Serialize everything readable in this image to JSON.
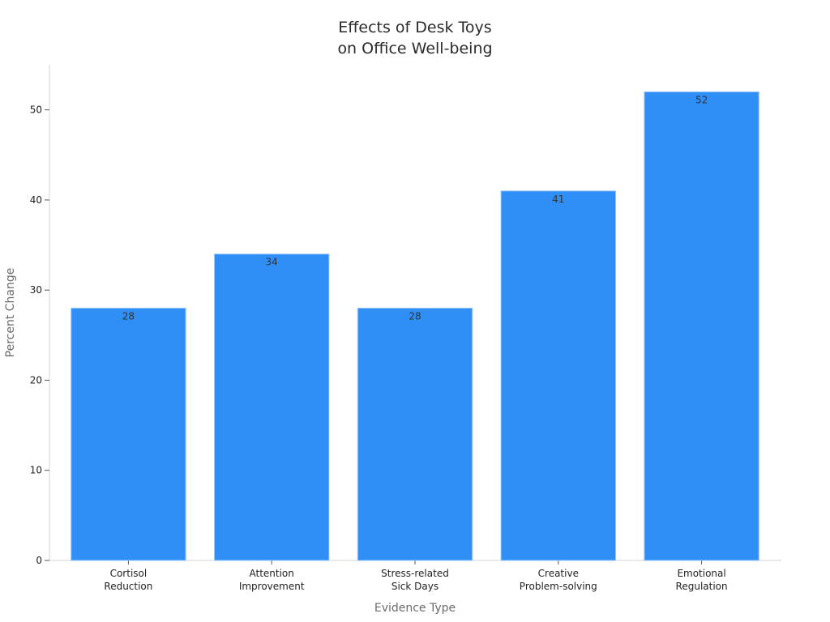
{
  "chart_data": {
    "type": "bar",
    "title_lines": [
      "Effects of Desk Toys",
      "on Office Well-being"
    ],
    "categories": [
      [
        "Cortisol",
        "Reduction"
      ],
      [
        "Attention",
        "Improvement"
      ],
      [
        "Stress-related",
        "Sick Days"
      ],
      [
        "Creative",
        "Problem-solving"
      ],
      [
        "Emotional",
        "Regulation"
      ]
    ],
    "values": [
      28,
      34,
      28,
      41,
      52
    ],
    "xlabel": "Evidence Type",
    "ylabel": "Percent Change",
    "ylim": [
      0,
      55
    ],
    "yticks": [
      0,
      10,
      20,
      30,
      40,
      50
    ],
    "grid": false,
    "legend": "none",
    "bar_color": "#2f8ff7",
    "data_labels": true
  }
}
